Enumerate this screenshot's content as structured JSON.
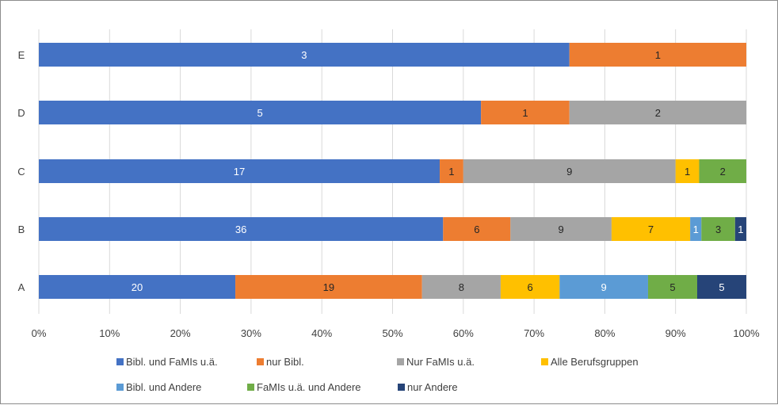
{
  "chart_data": {
    "type": "bar",
    "orientation": "horizontal",
    "stacked": "percent",
    "categories": [
      "A",
      "B",
      "C",
      "D",
      "E"
    ],
    "series": [
      {
        "name": "Bibl. und FaMIs u.ä.",
        "color": "#4472C4",
        "values": [
          20,
          36,
          17,
          5,
          3
        ]
      },
      {
        "name": "nur Bibl.",
        "color": "#ED7D31",
        "values": [
          19,
          6,
          1,
          1,
          1
        ]
      },
      {
        "name": "Nur FaMIs u.ä.",
        "color": "#A5A5A5",
        "values": [
          8,
          9,
          9,
          2,
          0
        ]
      },
      {
        "name": "Alle Berufsgruppen",
        "color": "#FFC000",
        "values": [
          6,
          7,
          1,
          0,
          0
        ]
      },
      {
        "name": "Bibl. und Andere",
        "color": "#5B9BD5",
        "values": [
          9,
          1,
          0,
          0,
          0
        ]
      },
      {
        "name": "FaMIs u.ä. und Andere",
        "color": "#70AD47",
        "values": [
          5,
          3,
          2,
          0,
          0
        ]
      },
      {
        "name": "nur Andere",
        "color": "#264478",
        "values": [
          5,
          1,
          0,
          0,
          0
        ]
      }
    ],
    "x_ticks": [
      "0%",
      "10%",
      "20%",
      "30%",
      "40%",
      "50%",
      "60%",
      "70%",
      "80%",
      "90%",
      "100%"
    ],
    "xlim": [
      0,
      100
    ],
    "grid": true,
    "legend_position": "bottom"
  }
}
